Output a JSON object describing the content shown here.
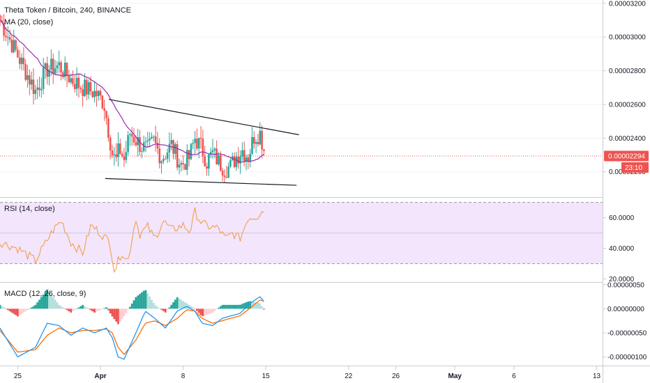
{
  "symbol_line": "Theta Token / Bitcoin, 240, BINANCE",
  "ma_label": "MA (20, close)",
  "rsi_label": "RSI (14, close)",
  "macd_label": "MACD (12, 26, close, 9)",
  "current_price": "0.00002294",
  "countdown": "23:10",
  "colors": {
    "up": "#26a69a",
    "down": "#ef5350",
    "ma": "#9c27b0",
    "rsi_line": "#f0a050",
    "rsi_band": "#f3e5fb",
    "macd_line": "#2196f3",
    "signal_line": "#ff6d00",
    "hist_up_strong": "#26a69a",
    "hist_up_weak": "#b2dfdb",
    "hist_down_strong": "#ef5350",
    "hist_down_weak": "#ffcdd2",
    "price_line": "#ef5350",
    "trendline": "#131722"
  },
  "chart_data": [
    {
      "type": "candlestick",
      "title": "Theta Token / Bitcoin, 240, BINANCE",
      "y_ticks": [
        "0.00003200",
        "0.00003000",
        "0.00002800",
        "0.00002600",
        "0.00002400",
        "0.00002200"
      ],
      "ylim": [
        2.05e-05,
        3.22e-05
      ],
      "x_ticks": [
        "25",
        "Apr",
        "8",
        "15",
        "22",
        "26",
        "May",
        "6",
        "13"
      ],
      "x_tick_days": [
        -7,
        0,
        7,
        14,
        21,
        25,
        30,
        35,
        42
      ],
      "xlim_days": [
        -8.5,
        42.5
      ],
      "last_day": 14.0,
      "samples_days": [
        -8.5,
        -7.5,
        -6.5,
        -5.5,
        -4.5,
        -3.5,
        -2.5,
        -1.5,
        -0.8,
        -0.3,
        0.3,
        1.0,
        1.3,
        1.6,
        2.0,
        2.5,
        3.0,
        3.5,
        4.0,
        4.5,
        5.2,
        6.0,
        6.8,
        7.5,
        8.0,
        8.5,
        9.0,
        9.5,
        10.0,
        10.5,
        11.0,
        11.5,
        12.0,
        12.5,
        13.0,
        13.5,
        14.0
      ],
      "samples_close": [
        3.1e-05,
        2.96e-05,
        2.82e-05,
        2.68e-05,
        2.81e-05,
        2.83e-05,
        2.75e-05,
        2.7e-05,
        2.68e-05,
        2.66e-05,
        2.61e-05,
        2.31e-05,
        2.26e-05,
        2.34e-05,
        2.27e-05,
        2.43e-05,
        2.39e-05,
        2.35e-05,
        2.33e-05,
        2.38e-05,
        2.28e-05,
        2.36e-05,
        2.24e-05,
        2.28e-05,
        2.4e-05,
        2.35e-05,
        2.26e-05,
        2.31e-05,
        2.26e-05,
        2.22e-05,
        2.23e-05,
        2.29e-05,
        2.33e-05,
        2.29e-05,
        2.41e-05,
        2.43e-05,
        2.29e-05
      ],
      "trendlines": [
        {
          "name": "upper",
          "from": [
            0.7,
            2.63e-05
          ],
          "to": [
            16.8,
            2.42e-05
          ]
        },
        {
          "name": "lower",
          "from": [
            0.4,
            2.16e-05
          ],
          "to": [
            16.6,
            2.12e-05
          ]
        }
      ]
    },
    {
      "type": "line",
      "title": "RSI (14, close)",
      "y_ticks": [
        "60.0000",
        "40.0000",
        "20.0000"
      ],
      "ylim": [
        18,
        73
      ],
      "band": [
        30,
        70
      ],
      "samples_days": [
        -8.5,
        -7.0,
        -5.5,
        -4.0,
        -3.3,
        -2.5,
        -1.5,
        -0.8,
        0.0,
        0.8,
        1.2,
        1.8,
        2.3,
        3.0,
        3.3,
        4.0,
        4.6,
        5.3,
        6.0,
        7.0,
        7.6,
        8.0,
        8.6,
        9.3,
        10.0,
        10.6,
        11.2,
        11.8,
        12.5,
        13.3,
        13.8,
        14.0
      ],
      "samples": [
        44,
        40,
        32,
        52,
        58,
        44,
        37,
        55,
        50,
        44,
        25,
        38,
        31,
        60,
        49,
        54,
        46,
        58,
        52,
        55,
        51,
        64,
        56,
        54,
        53,
        46,
        50,
        46,
        60,
        61,
        67,
        48
      ]
    },
    {
      "type": "bar+line",
      "title": "MACD (12, 26, close, 9)",
      "y_ticks": [
        "0.00000050",
        "0.00000000",
        "-0.00000050",
        "-0.00000100"
      ],
      "ylim": [
        -1.18e-06,
        5.4e-07
      ],
      "series": [
        {
          "name": "",
          "kind": "macd",
          "samples_days": [
            -8.5,
            -7.0,
            -5.5,
            -4.5,
            -3.5,
            -2.5,
            -1.5,
            -0.5,
            0.5,
            1.0,
            1.5,
            2.0,
            3.0,
            3.8,
            4.6,
            5.5,
            6.5,
            7.3,
            8.0,
            8.6,
            9.5,
            10.3,
            11.0,
            11.8,
            12.6,
            13.5,
            14.0
          ],
          "samples": [
            -4e-07,
            -1e-06,
            -8e-07,
            -3e-07,
            -3.5e-07,
            -5.5e-07,
            -4e-07,
            -5e-07,
            -4e-07,
            -6e-07,
            -1e-06,
            -1.05e-06,
            -5e-07,
            -5e-08,
            -2e-07,
            -4e-07,
            -5e-08,
            5e-08,
            -5e-08,
            -3e-07,
            -3.5e-07,
            -2e-07,
            -1.5e-07,
            -1e-07,
            1e-07,
            2.5e-07,
            1e-07
          ]
        },
        {
          "name": "",
          "kind": "signal",
          "samples_days": [
            -8.5,
            -7.0,
            -5.5,
            -4.5,
            -3.5,
            -2.5,
            -1.5,
            -0.5,
            0.5,
            1.0,
            1.5,
            2.0,
            3.0,
            3.8,
            4.6,
            5.5,
            6.5,
            7.3,
            8.0,
            8.6,
            9.5,
            10.3,
            11.0,
            11.8,
            12.6,
            13.5,
            14.0
          ],
          "samples": [
            -4.5e-07,
            -9e-07,
            -8.5e-07,
            -5.5e-07,
            -4e-07,
            -5e-07,
            -4.5e-07,
            -4.5e-07,
            -4.2e-07,
            -5e-07,
            -8e-07,
            -9.5e-07,
            -6.5e-07,
            -3e-07,
            -2.5e-07,
            -3.5e-07,
            -2e-07,
            -2e-08,
            -5e-08,
            -2e-07,
            -3e-07,
            -2.5e-07,
            -2e-07,
            -1.5e-07,
            0.0,
            1.8e-07,
            1.5e-07
          ]
        }
      ]
    }
  ]
}
